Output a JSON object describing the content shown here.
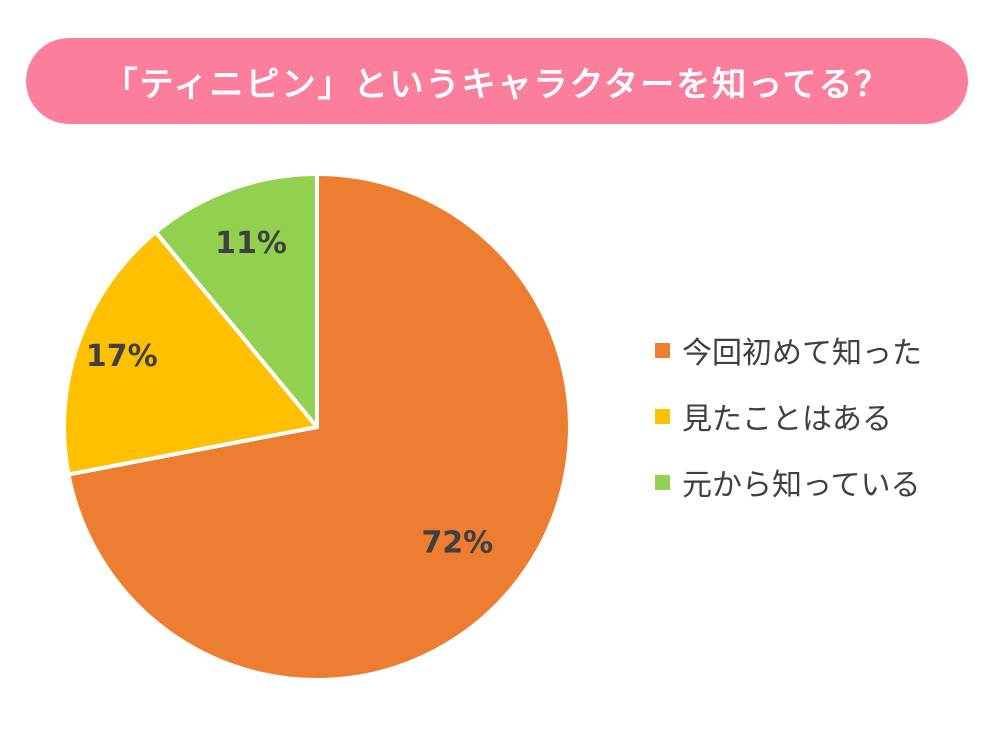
{
  "chart_data": {
    "type": "pie",
    "title": "「ティニピン」というキャラクターを知ってる？",
    "categories": [
      "今回初めて知った",
      "見たことはある",
      "元から知っている"
    ],
    "values": [
      72,
      17,
      11
    ],
    "value_labels": [
      "72%",
      "17%",
      "11%"
    ],
    "colors": [
      "#ed7d31",
      "#ffc000",
      "#92d050"
    ],
    "title_banner_color": "#fb7f9c",
    "legend_placement": "right",
    "start_angle": "12 o'clock",
    "direction": "clockwise"
  }
}
